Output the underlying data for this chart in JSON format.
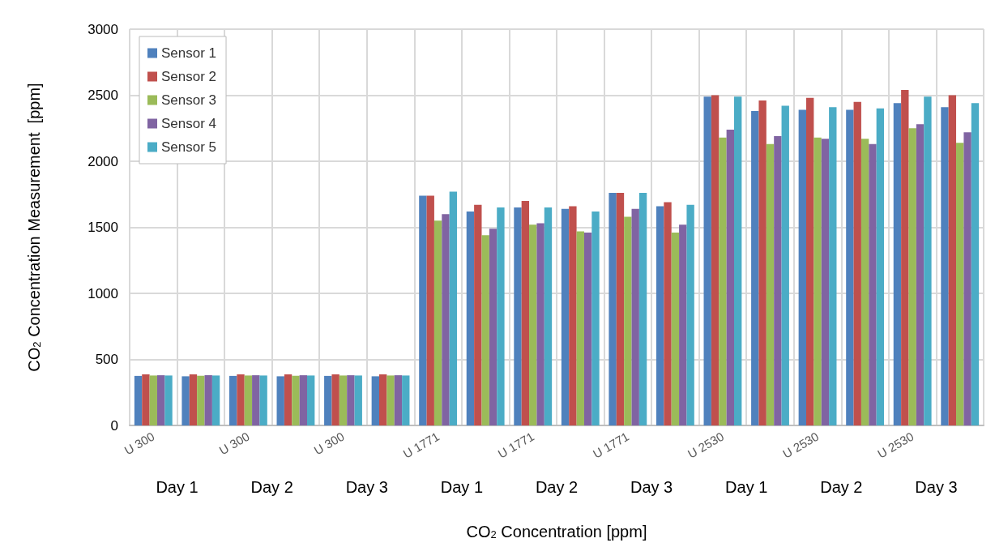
{
  "chart_data": {
    "type": "bar",
    "xlabel": "CO$_{2}$ Concentration [ppm]",
    "ylabel": "CO$_{2}$ Concentration Measurement  [ppm]",
    "categories": [
      "U 300",
      null,
      "U 300",
      null,
      "U 300",
      null,
      "U 1771",
      null,
      "U 1771",
      null,
      "U 1771",
      null,
      "U 2530",
      null,
      "U 2530",
      null,
      "U 2530",
      null
    ],
    "annotations": [
      "Day 1",
      "Day 2",
      "Day 3",
      "Day 1",
      "Day 2",
      "Day 3",
      "Day 1",
      "Day 2",
      "Day 3"
    ],
    "series": [
      {
        "name": "Sensor 1",
        "color": "#4f81bd",
        "values": [
          375,
          372,
          375,
          372,
          375,
          372,
          1740,
          1620,
          1650,
          1640,
          1760,
          1660,
          2490,
          2380,
          2390,
          2390,
          2440,
          2410
        ]
      },
      {
        "name": "Sensor 2",
        "color": "#c0504d",
        "values": [
          387,
          387,
          387,
          387,
          387,
          387,
          1740,
          1670,
          1700,
          1660,
          1760,
          1690,
          2500,
          2460,
          2480,
          2450,
          2540,
          2500
        ]
      },
      {
        "name": "Sensor 3",
        "color": "#9bbb59",
        "values": [
          378,
          376,
          378,
          376,
          378,
          378,
          1550,
          1440,
          1520,
          1470,
          1580,
          1460,
          2180,
          2130,
          2180,
          2170,
          2250,
          2140
        ]
      },
      {
        "name": "Sensor 4",
        "color": "#8064a2",
        "values": [
          380,
          380,
          380,
          380,
          380,
          380,
          1600,
          1490,
          1530,
          1460,
          1640,
          1520,
          2240,
          2190,
          2170,
          2130,
          2280,
          2220
        ]
      },
      {
        "name": "Sensor 5",
        "color": "#4bacc6",
        "values": [
          378,
          378,
          378,
          378,
          378,
          378,
          1770,
          1650,
          1650,
          1620,
          1760,
          1670,
          2490,
          2420,
          2410,
          2400,
          2490,
          2440
        ]
      }
    ],
    "ylim": [
      0,
      3000
    ],
    "yticks": [
      0,
      500,
      1000,
      1500,
      2000,
      2500,
      3000
    ],
    "grid": true,
    "legend": "top left"
  }
}
